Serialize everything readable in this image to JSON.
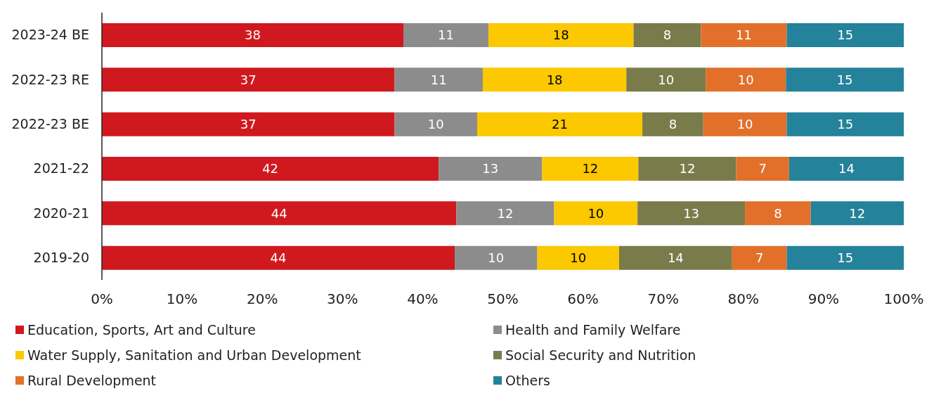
{
  "chart_data": {
    "type": "bar",
    "orientation": "horizontal",
    "stacked": true,
    "legend": "bottom",
    "grid": false,
    "categories": [
      "2023-24 BE",
      "2022-23 RE",
      "2022-23 BE",
      "2021-22",
      "2020-21",
      "2019-20"
    ],
    "xlim": [
      0,
      100
    ],
    "xticks": [
      {
        "value": 0,
        "label": "0%"
      },
      {
        "value": 10,
        "label": "10%"
      },
      {
        "value": 20,
        "label": "20%"
      },
      {
        "value": 30,
        "label": "30%"
      },
      {
        "value": 40,
        "label": "40%"
      },
      {
        "value": 50,
        "label": "50%"
      },
      {
        "value": 60,
        "label": "60%"
      },
      {
        "value": 70,
        "label": "70%"
      },
      {
        "value": 80,
        "label": "80%"
      },
      {
        "value": 90,
        "label": "90%"
      },
      {
        "value": 100,
        "label": "100%"
      }
    ],
    "series": [
      {
        "name": "Education, Sports, Art and Culture",
        "color": "#d0191f",
        "values": [
          37.6,
          36.5,
          36.5,
          42.0,
          44.2,
          44.0
        ],
        "value_labels": [
          "38",
          "37",
          "37",
          "42",
          "44",
          "44"
        ]
      },
      {
        "name": "Health and Family Welfare",
        "color": "#8c8c8c",
        "values": [
          10.6,
          11.0,
          10.3,
          12.9,
          12.2,
          10.3
        ],
        "value_labels": [
          "11",
          "11",
          "10",
          "13",
          "12",
          "10"
        ]
      },
      {
        "name": "Water Supply, Sanitation and Urban Development",
        "color": "#fcc800",
        "values": [
          18.1,
          17.9,
          20.6,
          12.0,
          10.4,
          10.2
        ],
        "value_labels": [
          "18",
          "18",
          "21",
          "12",
          "10",
          "10"
        ]
      },
      {
        "name": "Social Security and Nutrition",
        "color": "#7a7b4b",
        "values": [
          8.4,
          9.9,
          7.6,
          12.2,
          13.4,
          14.1
        ],
        "value_labels": [
          "8",
          "10",
          "8",
          "12",
          "13",
          "14"
        ]
      },
      {
        "name": "Rural Development",
        "color": "#e2702b",
        "values": [
          10.7,
          10.0,
          10.4,
          6.6,
          8.2,
          6.8
        ],
        "value_labels": [
          "11",
          "10",
          "10",
          "7",
          "8",
          "7"
        ]
      },
      {
        "name": "Others",
        "color": "#24829a",
        "values": [
          14.6,
          14.7,
          14.6,
          14.3,
          11.6,
          14.6
        ],
        "value_labels": [
          "15",
          "15",
          "15",
          "14",
          "12",
          "15"
        ]
      }
    ]
  }
}
